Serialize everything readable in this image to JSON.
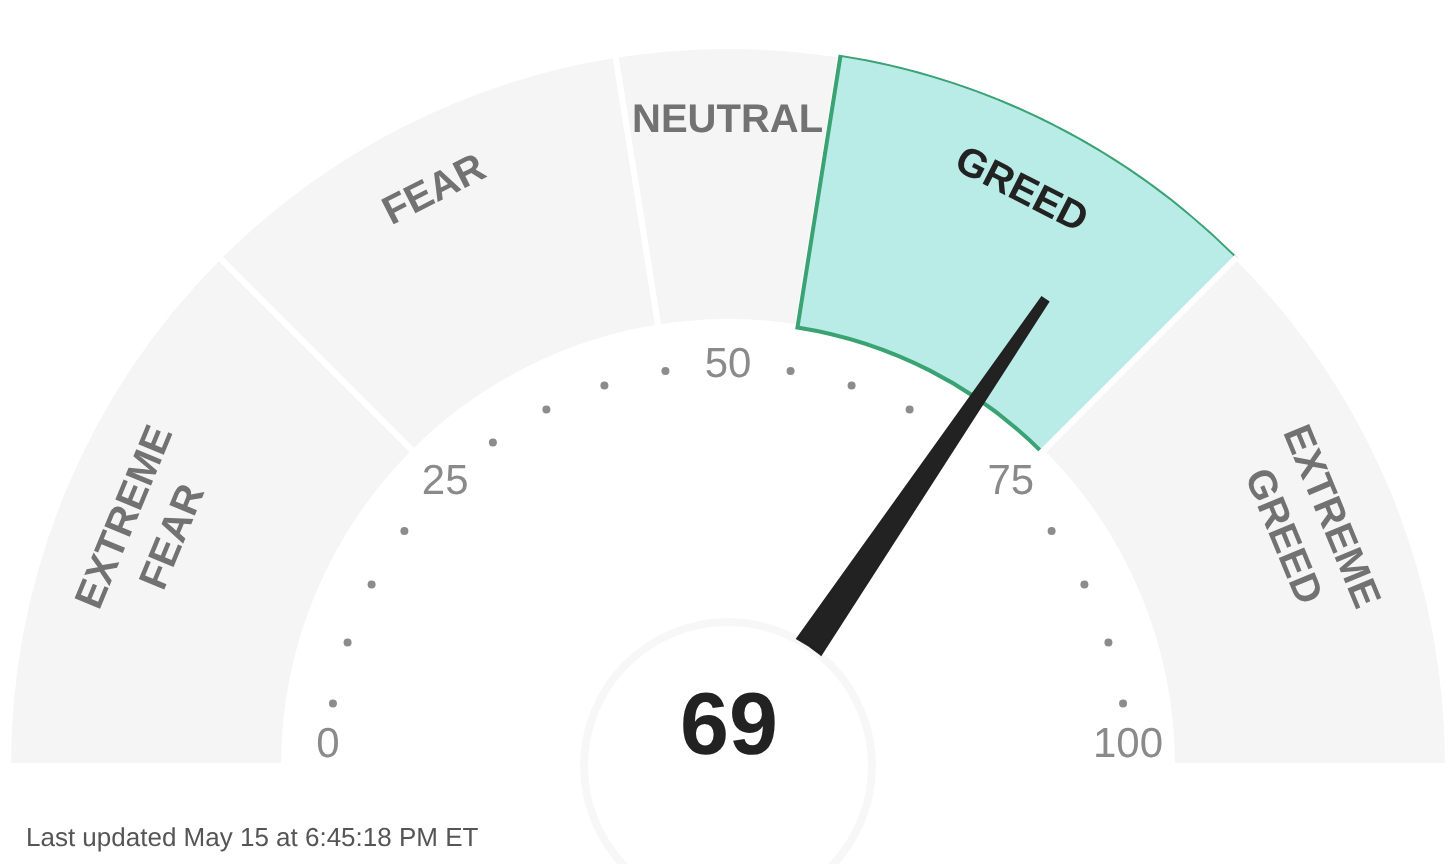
{
  "chart_data": {
    "type": "donut",
    "categories": [
      "EXTREME FEAR",
      "FEAR",
      "NEUTRAL",
      "GREED",
      "EXTREME GREED"
    ],
    "values": [
      25,
      20,
      10,
      20,
      25
    ],
    "colors": [
      "#f5f5f5",
      "#f5f5f5",
      "#f5f5f5",
      "#b9ece6",
      "#f5f5f5"
    ],
    "needle": "GREED",
    "annotations": [
      "0",
      "25",
      "50",
      "75",
      "100",
      "69",
      "Last updated May 15 at 6:45:18 PM ET"
    ]
  }
}
